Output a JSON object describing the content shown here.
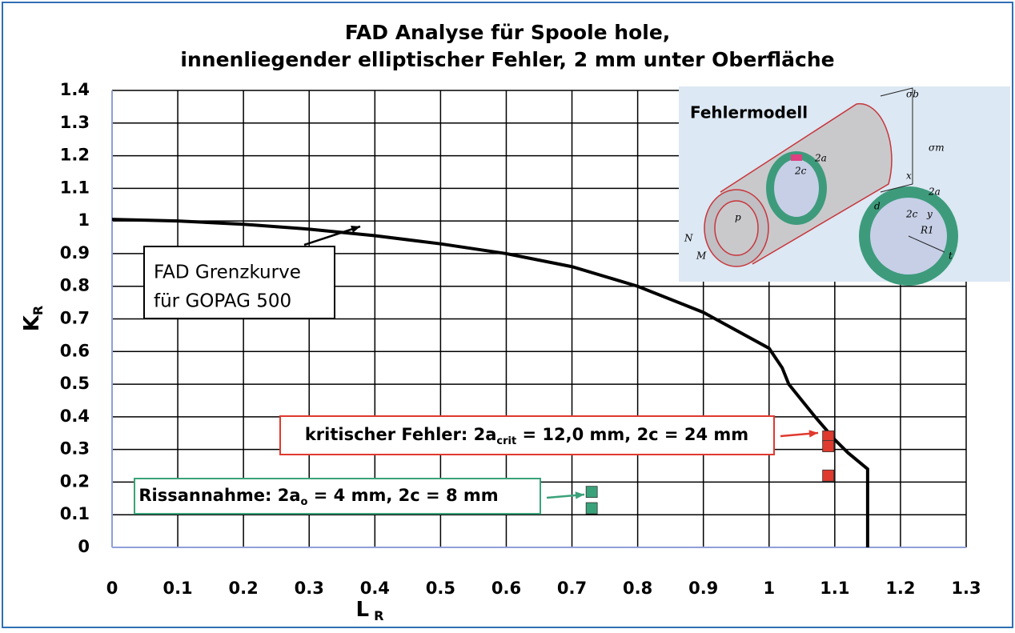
{
  "chart_data": {
    "type": "line",
    "title": [
      "FAD Analyse für Spoole hole,",
      "innenliegender elliptischer Fehler, 2 mm unter Oberfläche"
    ],
    "x_label": {
      "text": "L",
      "sub": "R"
    },
    "y_label": {
      "text": "K",
      "sub": "R"
    },
    "xlim": [
      0,
      1.3
    ],
    "ylim": [
      0,
      1.4
    ],
    "xticks": [
      0,
      0.1,
      0.2,
      0.3,
      0.4,
      0.5,
      0.6,
      0.7,
      0.8,
      0.9,
      1,
      1.1,
      1.2,
      1.3
    ],
    "yticks": [
      0,
      0.1,
      0.2,
      0.3,
      0.4,
      0.5,
      0.6,
      0.7,
      0.8,
      0.9,
      1,
      1.1,
      1.2,
      1.3,
      1.4
    ],
    "grid": true,
    "series": [
      {
        "style": "line",
        "color": "#000000",
        "x": [
          0,
          0.1,
          0.2,
          0.3,
          0.4,
          0.5,
          0.6,
          0.7,
          0.8,
          0.9,
          1.0,
          1.02,
          1.03,
          1.05,
          1.07,
          1.1,
          1.12,
          1.15,
          1.15
        ],
        "values": [
          1.005,
          1.0,
          0.99,
          0.975,
          0.955,
          0.93,
          0.9,
          0.86,
          0.8,
          0.72,
          0.61,
          0.55,
          0.5,
          0.45,
          0.4,
          0.33,
          0.29,
          0.24,
          0
        ]
      },
      {
        "style": "marker",
        "color": "#e0392e",
        "x": [
          1.09,
          1.09,
          1.09
        ],
        "values": [
          0.34,
          0.31,
          0.22
        ]
      },
      {
        "style": "marker",
        "color": "#3aa27a",
        "x": [
          0.73,
          0.73
        ],
        "values": [
          0.17,
          0.12
        ]
      }
    ],
    "annotations": [
      {
        "lines": [
          "FAD Grenzkurve",
          "für GOPAG 500"
        ],
        "color": "#000000"
      },
      {
        "parts": [
          "kritischer Fehler: 2a",
          "crit",
          " = 12,0 mm, 2c = 24 mm"
        ],
        "color": "#e0392e"
      },
      {
        "parts": [
          "Rissannahme: 2a",
          "o",
          " = 4 mm, 2c = 8 mm"
        ],
        "color": "#3aa27a"
      }
    ],
    "inset": {
      "title": "Fehlermodell",
      "labels": [
        "σb",
        "σm",
        "2a",
        "2c",
        "2a",
        "2c",
        "x",
        "y",
        "d",
        "R1",
        "t",
        "p",
        "N",
        "M"
      ]
    }
  }
}
